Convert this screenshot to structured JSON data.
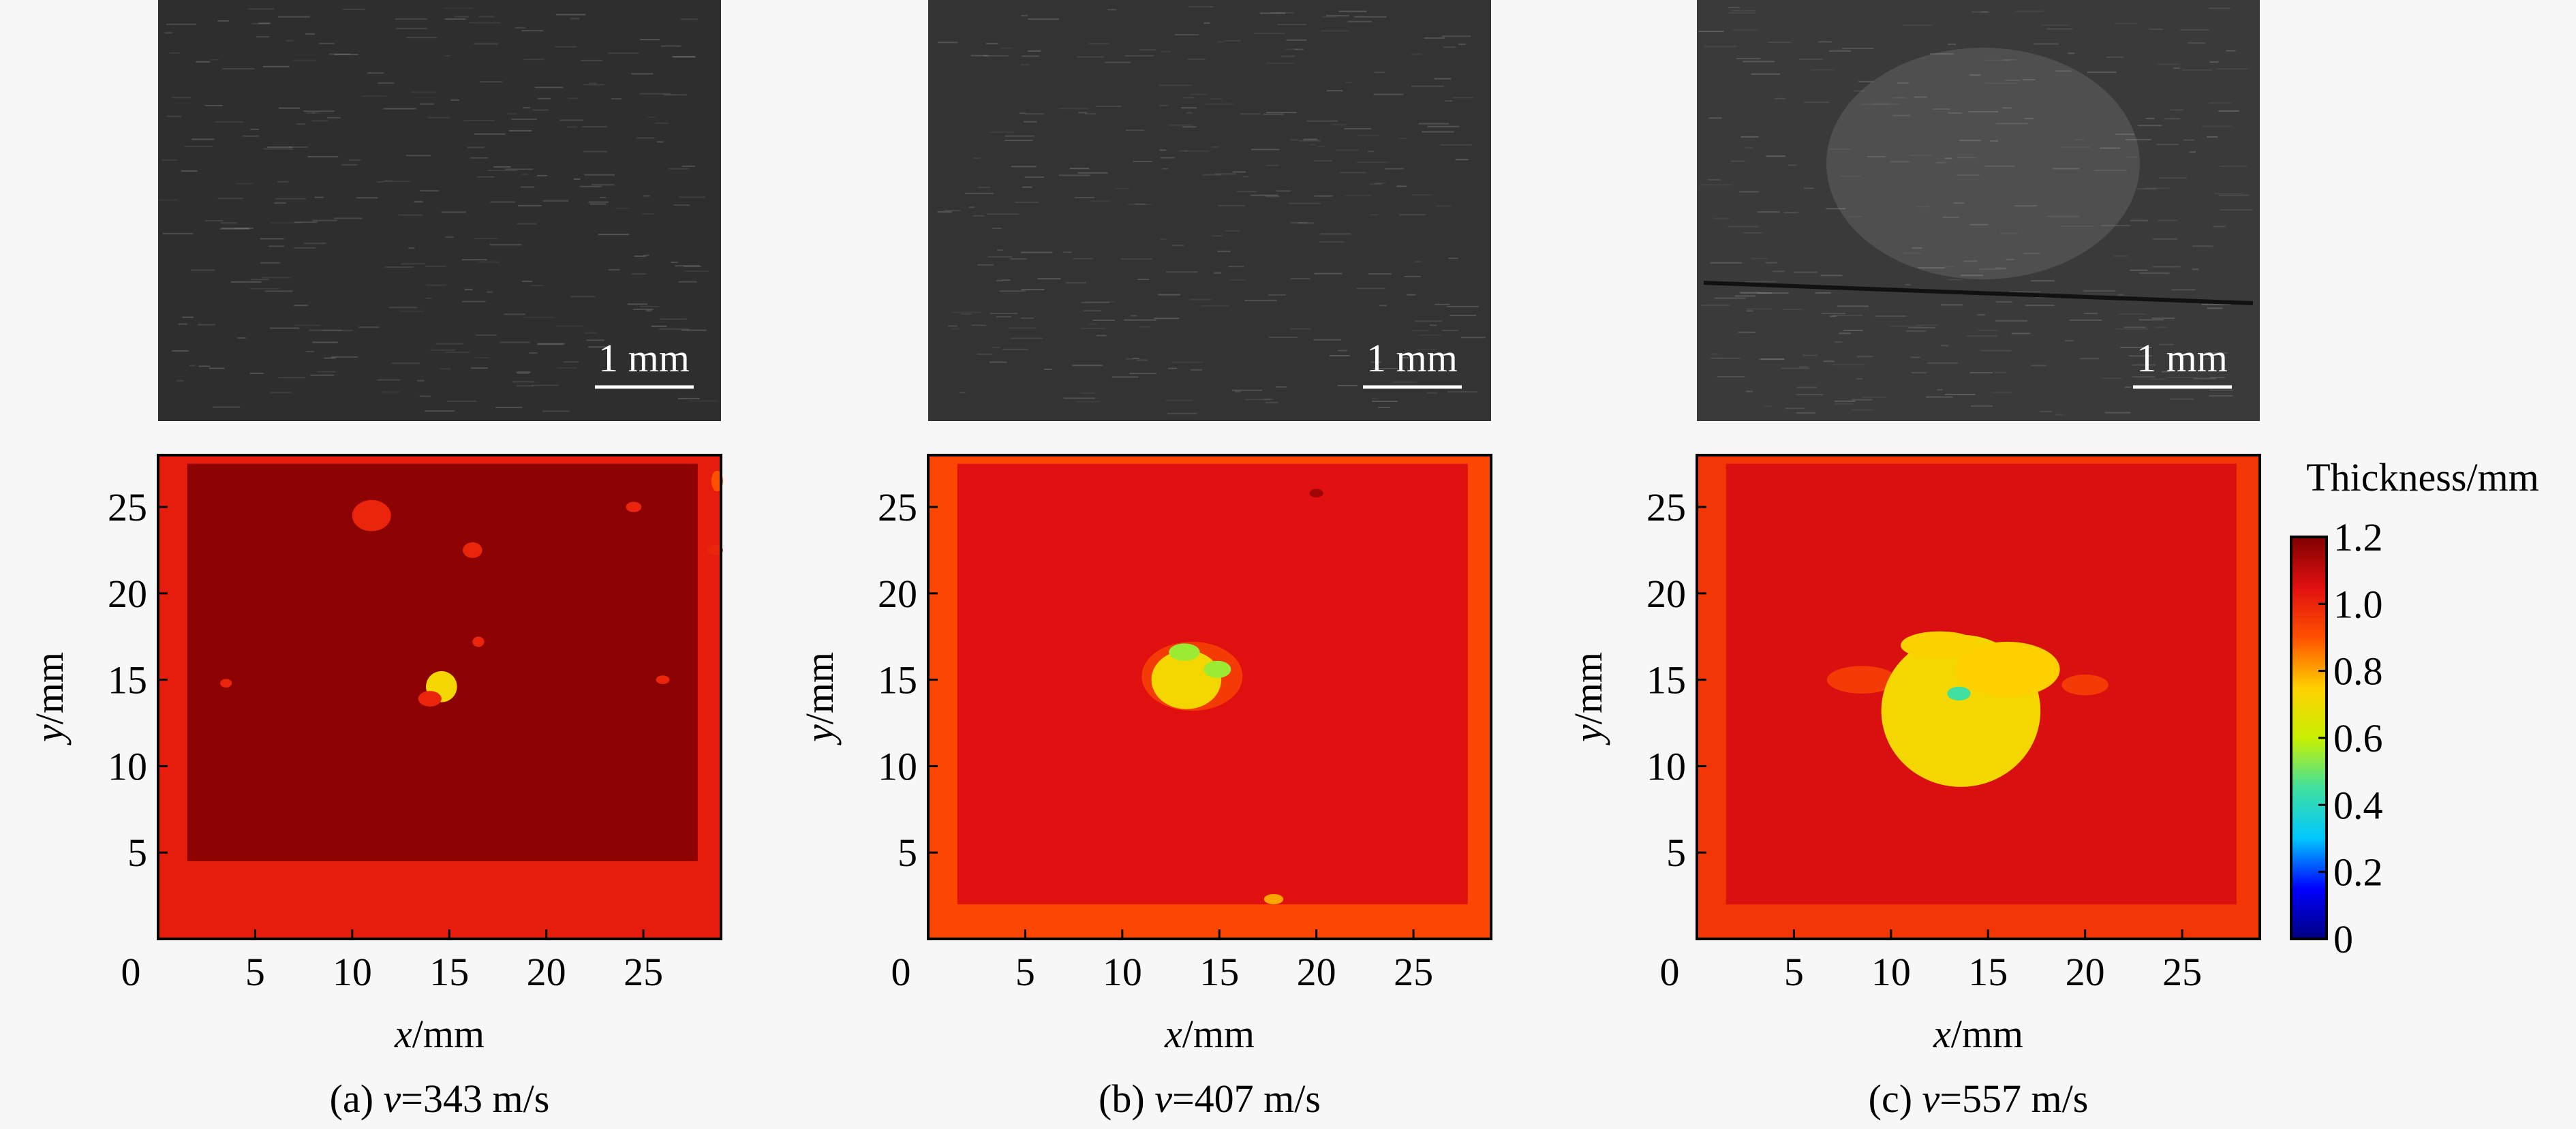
{
  "chart_data": {
    "type": "heatmap",
    "xlabel": "x/mm",
    "ylabel": "y/mm",
    "xlim": [
      0,
      29
    ],
    "ylim": [
      0,
      28
    ],
    "xticks": [
      0,
      5,
      10,
      15,
      20,
      25
    ],
    "yticks": [
      5,
      10,
      15,
      20,
      25
    ],
    "colorbar": {
      "title": "Thickness/mm",
      "min": 0,
      "max": 1.2,
      "ticks": [
        "0",
        "0.2",
        "0.4",
        "0.6",
        "0.8",
        "1.0",
        "1.2"
      ],
      "colors": [
        "#000080",
        "#0000ff",
        "#00c8ff",
        "#40e0a0",
        "#c8f000",
        "#ffd000",
        "#ff5000",
        "#e01010",
        "#800000"
      ]
    },
    "scale_bar_label": "1 mm",
    "panels": [
      {
        "letter": "(a)",
        "velocity_label": "v",
        "velocity_value": "=343 m/s",
        "background_thickness": 1.18,
        "edge_thickness": 1.02,
        "defects": [
          {
            "x": 14.6,
            "y": 14.6,
            "rx": 0.8,
            "ry": 0.9,
            "thickness": 0.72
          },
          {
            "x": 14.0,
            "y": 13.9,
            "rx": 0.6,
            "ry": 0.45,
            "thickness": 1.0
          },
          {
            "x": 11.0,
            "y": 24.5,
            "rx": 1.0,
            "ry": 0.9,
            "thickness": 1.0
          },
          {
            "x": 16.2,
            "y": 22.5,
            "rx": 0.5,
            "ry": 0.45,
            "thickness": 1.0
          },
          {
            "x": 16.5,
            "y": 17.2,
            "rx": 0.3,
            "ry": 0.3,
            "thickness": 1.0
          },
          {
            "x": 24.5,
            "y": 25.0,
            "rx": 0.4,
            "ry": 0.3,
            "thickness": 1.0
          },
          {
            "x": 28.7,
            "y": 22.5,
            "rx": 0.4,
            "ry": 0.3,
            "thickness": 1.0
          },
          {
            "x": 26.0,
            "y": 15.0,
            "rx": 0.35,
            "ry": 0.25,
            "thickness": 1.0
          },
          {
            "x": 3.5,
            "y": 14.8,
            "rx": 0.3,
            "ry": 0.25,
            "thickness": 1.0
          },
          {
            "x": 28.8,
            "y": 26.5,
            "rx": 0.3,
            "ry": 0.6,
            "thickness": 0.9
          }
        ]
      },
      {
        "letter": "(b)",
        "velocity_label": "v",
        "velocity_value": "=407 m/s",
        "background_thickness": 1.05,
        "edge_thickness": 0.92,
        "defects": [
          {
            "x": 13.6,
            "y": 15.2,
            "rx": 2.6,
            "ry": 2.0,
            "thickness": 0.95
          },
          {
            "x": 13.3,
            "y": 15.0,
            "rx": 1.8,
            "ry": 1.7,
            "thickness": 0.72
          },
          {
            "x": 13.2,
            "y": 16.6,
            "rx": 0.8,
            "ry": 0.5,
            "thickness": 0.55
          },
          {
            "x": 14.9,
            "y": 15.6,
            "rx": 0.7,
            "ry": 0.5,
            "thickness": 0.55
          },
          {
            "x": 17.8,
            "y": 2.3,
            "rx": 0.5,
            "ry": 0.3,
            "thickness": 0.8
          },
          {
            "x": 20.0,
            "y": 25.8,
            "rx": 0.35,
            "ry": 0.25,
            "thickness": 1.15
          }
        ]
      },
      {
        "letter": "(c)",
        "velocity_label": "v",
        "velocity_value": "=557 m/s",
        "background_thickness": 1.06,
        "edge_thickness": 0.96,
        "defects": [
          {
            "x": 8.5,
            "y": 15.0,
            "rx": 1.8,
            "ry": 0.8,
            "thickness": 0.95
          },
          {
            "x": 20.0,
            "y": 14.7,
            "rx": 1.2,
            "ry": 0.6,
            "thickness": 0.95
          },
          {
            "x": 13.6,
            "y": 13.2,
            "rx": 4.1,
            "ry": 4.4,
            "thickness": 0.72
          },
          {
            "x": 16.0,
            "y": 15.6,
            "rx": 2.7,
            "ry": 1.6,
            "thickness": 0.75
          },
          {
            "x": 12.5,
            "y": 17.0,
            "rx": 2.0,
            "ry": 0.8,
            "thickness": 0.74
          },
          {
            "x": 13.5,
            "y": 14.2,
            "rx": 0.6,
            "ry": 0.4,
            "thickness": 0.45
          }
        ]
      }
    ]
  },
  "photo_colors": {
    "panel_a": "#2e2e2e",
    "panel_b": "#333333",
    "panel_c": "#3a3a3a",
    "speckle": "#9a9a9a",
    "scale_bar": "#ffffff"
  }
}
